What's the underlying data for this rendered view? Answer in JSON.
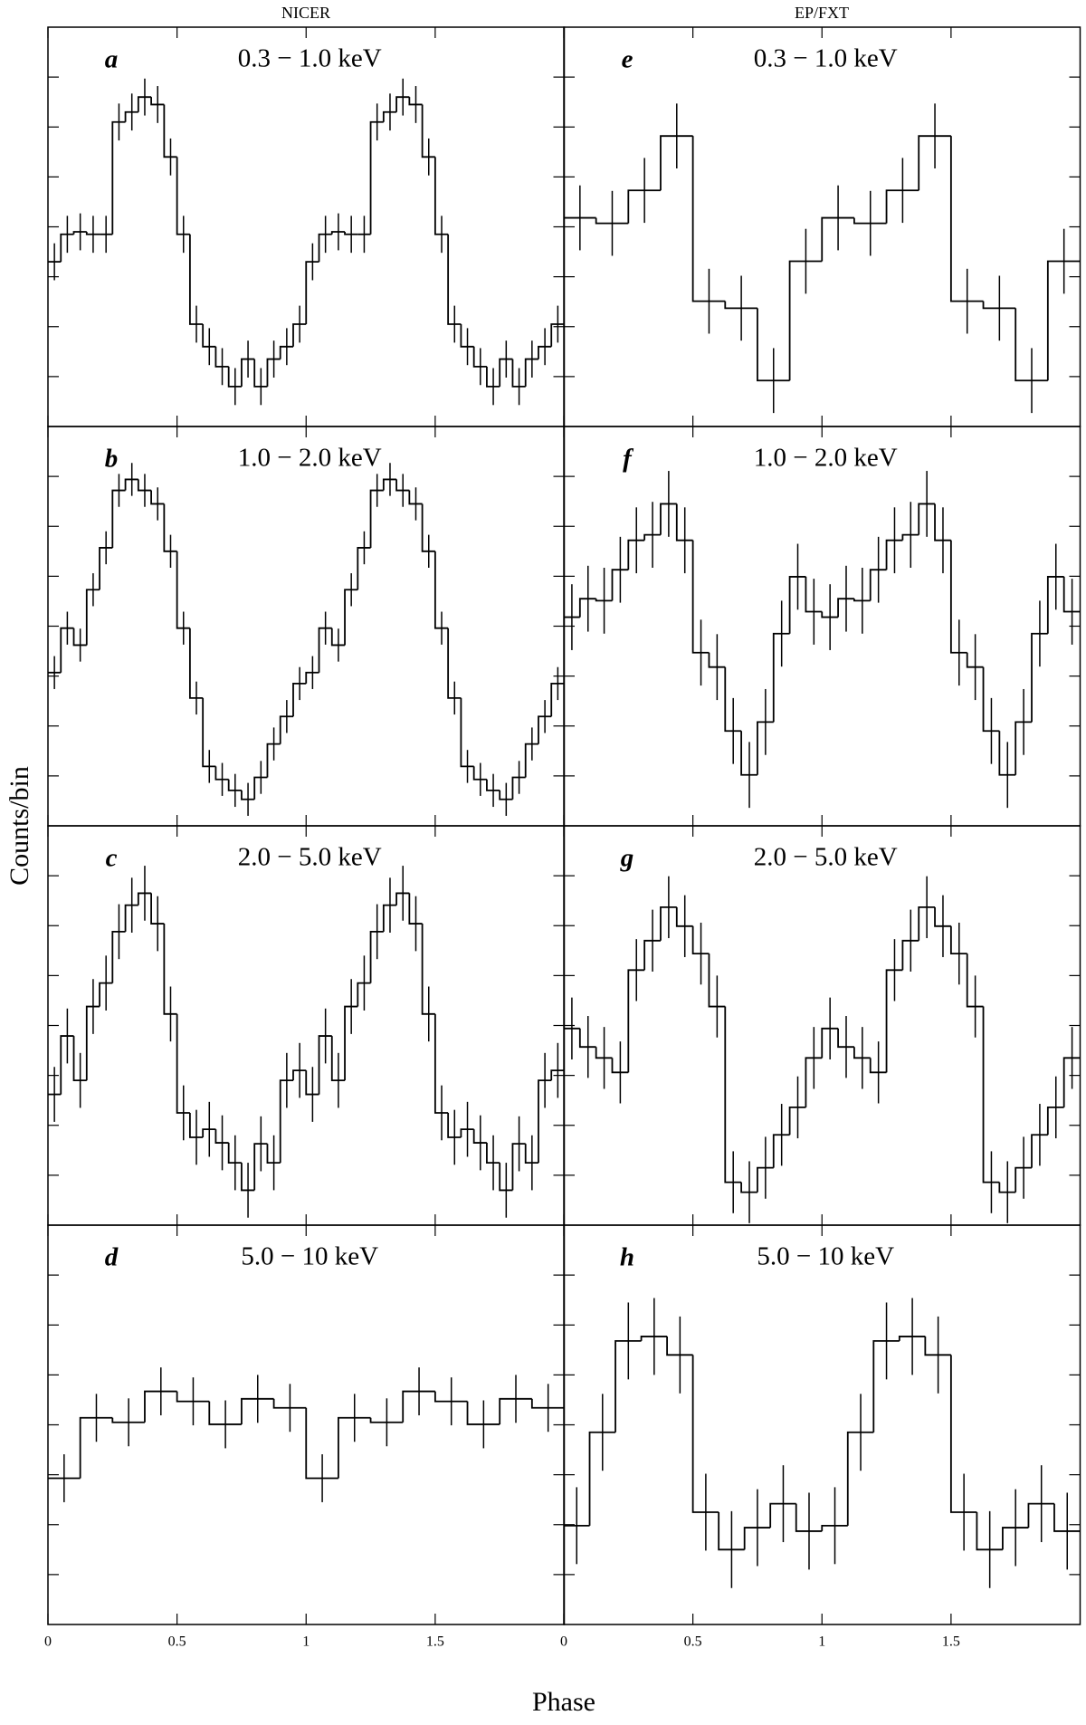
{
  "column_titles": [
    "NICER",
    "EP/FXT"
  ],
  "y_label": "Counts/bin",
  "x_label": "Phase",
  "chart_data": [
    {
      "type": "step",
      "label": "a",
      "title": "0.3 − 1.0 keV",
      "xlim": [
        0,
        2
      ],
      "xticks": [
        0,
        0.5,
        1,
        1.5
      ],
      "ylim": [
        0,
        8
      ],
      "yticks": [
        1,
        2,
        3,
        4,
        5,
        6,
        7
      ],
      "error": 0.37,
      "values": [
        3.3,
        3.85,
        3.9,
        3.85,
        3.85,
        6.1,
        6.3,
        6.6,
        6.45,
        5.4,
        3.85,
        2.05,
        1.6,
        1.2,
        0.8,
        1.35,
        0.8,
        1.35,
        1.6,
        2.05,
        3.3,
        3.85,
        3.9,
        3.85,
        3.85,
        6.1,
        6.3,
        6.6,
        6.45,
        5.4,
        3.85,
        2.05,
        1.6,
        1.2,
        0.8,
        1.35,
        0.8,
        1.35,
        1.6,
        2.05
      ]
    },
    {
      "type": "step",
      "label": "b",
      "title": "1.0 − 2.0 keV",
      "xlim": [
        0,
        2
      ],
      "xticks": [
        0,
        0.5,
        1,
        1.5
      ],
      "ylim": [
        0,
        8
      ],
      "yticks": [
        1,
        2,
        3,
        4,
        5,
        6,
        7
      ],
      "error": 0.33,
      "values": [
        3.07,
        3.96,
        3.62,
        4.73,
        5.57,
        6.72,
        6.94,
        6.72,
        6.45,
        5.5,
        3.96,
        2.56,
        1.19,
        0.93,
        0.71,
        0.53,
        0.97,
        1.64,
        2.19,
        2.85,
        3.07,
        3.96,
        3.62,
        4.73,
        5.57,
        6.72,
        6.94,
        6.72,
        6.45,
        5.5,
        3.96,
        2.56,
        1.19,
        0.93,
        0.71,
        0.53,
        0.97,
        1.64,
        2.19,
        2.85
      ]
    },
    {
      "type": "step",
      "label": "c",
      "title": "2.0 − 5.0 keV",
      "xlim": [
        0,
        2
      ],
      "xticks": [
        0,
        0.5,
        1,
        1.5
      ],
      "ylim": [
        0,
        8
      ],
      "yticks": [
        1,
        2,
        3,
        4,
        5,
        6,
        7
      ],
      "error": 0.55,
      "values": [
        2.62,
        3.79,
        2.9,
        4.38,
        4.85,
        5.88,
        6.41,
        6.65,
        6.04,
        4.23,
        2.25,
        1.76,
        1.92,
        1.65,
        1.25,
        0.7,
        1.63,
        1.25,
        2.9,
        3.1,
        2.62,
        3.79,
        2.9,
        4.38,
        4.85,
        5.88,
        6.41,
        6.65,
        6.04,
        4.23,
        2.25,
        1.76,
        1.92,
        1.65,
        1.25,
        0.7,
        1.63,
        1.25,
        2.9,
        3.1
      ]
    },
    {
      "type": "step",
      "label": "d",
      "title": "5.0 − 10 keV",
      "xlim": [
        0,
        2
      ],
      "xticks": [
        0,
        0.5,
        1,
        1.5
      ],
      "ylim": [
        0,
        8
      ],
      "yticks": [
        1,
        2,
        3,
        4,
        5,
        6,
        7
      ],
      "error": 0.48,
      "values": [
        2.93,
        4.14,
        4.05,
        4.67,
        4.47,
        4.01,
        4.52,
        4.34,
        2.93,
        4.14,
        4.05,
        4.67,
        4.47,
        4.01,
        4.52,
        4.34
      ]
    },
    {
      "type": "step",
      "label": "e",
      "title": "0.3 − 1.0 keV",
      "xlim": [
        0,
        2
      ],
      "xticks": [
        0,
        0.5,
        1,
        1.5
      ],
      "ylim": [
        0,
        8
      ],
      "yticks": [
        1,
        2,
        3,
        4,
        5,
        6,
        7
      ],
      "error": 0.65,
      "values": [
        4.18,
        4.07,
        4.73,
        5.82,
        2.51,
        2.37,
        0.92,
        3.31,
        4.18,
        4.07,
        4.73,
        5.82,
        2.51,
        2.37,
        0.92,
        3.31
      ]
    },
    {
      "type": "step",
      "label": "f",
      "title": "1.0 − 2.0 keV",
      "xlim": [
        0,
        2
      ],
      "xticks": [
        0,
        0.5,
        1,
        1.5
      ],
      "ylim": [
        0,
        8
      ],
      "yticks": [
        1,
        2,
        3,
        4,
        5,
        6,
        7
      ],
      "error": 0.66,
      "values": [
        4.18,
        4.55,
        4.51,
        5.13,
        5.72,
        5.83,
        6.45,
        5.72,
        3.47,
        3.18,
        1.9,
        1.02,
        2.08,
        3.85,
        4.99,
        4.29,
        4.18,
        4.55,
        4.51,
        5.13,
        5.72,
        5.83,
        6.45,
        5.72,
        3.47,
        3.18,
        1.9,
        1.02,
        2.08,
        3.85,
        4.99,
        4.29
      ]
    },
    {
      "type": "step",
      "label": "g",
      "title": "2.0 − 5.0 keV",
      "xlim": [
        0,
        2
      ],
      "xticks": [
        0,
        0.5,
        1,
        1.5
      ],
      "ylim": [
        0,
        8
      ],
      "yticks": [
        1,
        2,
        3,
        4,
        5,
        6,
        7
      ],
      "error": 0.62,
      "values": [
        3.94,
        3.57,
        3.35,
        3.06,
        5.11,
        5.7,
        6.37,
        5.99,
        5.44,
        4.38,
        0.86,
        0.66,
        1.15,
        1.81,
        2.36,
        3.35,
        3.94,
        3.57,
        3.35,
        3.06,
        5.11,
        5.7,
        6.37,
        5.99,
        5.44,
        4.38,
        0.86,
        0.66,
        1.15,
        1.81,
        2.36,
        3.35
      ]
    },
    {
      "type": "step",
      "label": "h",
      "title": "5.0 − 10 keV",
      "xlim": [
        0,
        2
      ],
      "xticks": [
        0,
        0.5,
        1,
        1.5
      ],
      "ylim": [
        0,
        8
      ],
      "yticks": [
        1,
        2,
        3,
        4,
        5,
        6,
        7
      ],
      "error": 0.77,
      "values": [
        1.98,
        3.85,
        5.68,
        5.77,
        5.4,
        2.25,
        1.5,
        1.94,
        2.42,
        1.87,
        1.98,
        3.85,
        5.68,
        5.77,
        5.4,
        2.25,
        1.5,
        1.94,
        2.42,
        1.87
      ]
    }
  ]
}
